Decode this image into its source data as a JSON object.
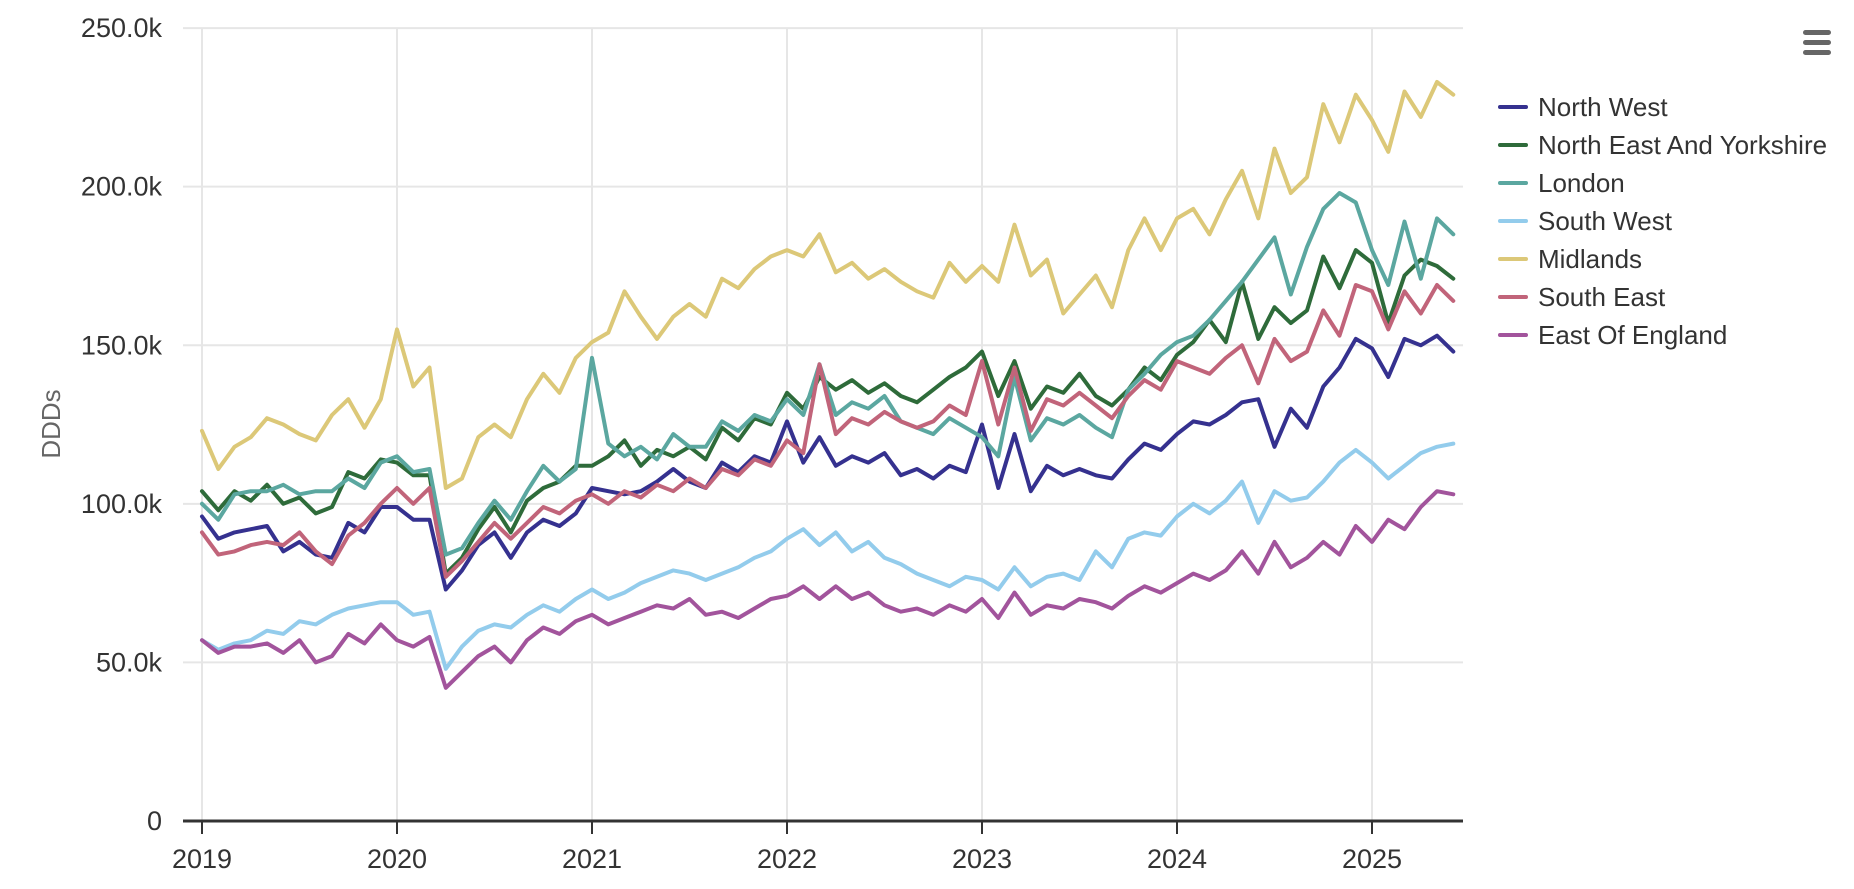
{
  "chart_data": {
    "type": "line",
    "title": "",
    "xlabel": "",
    "ylabel": "DDDs",
    "unit": "DDDs (thousands)",
    "grid": true,
    "legend_position": "right",
    "ylim_thousands": [
      0,
      250
    ],
    "y_tick_labels": [
      "0",
      "50.0k",
      "100.0k",
      "150.0k",
      "200.0k",
      "250.0k"
    ],
    "y_tick_values_thousands": [
      0,
      50,
      100,
      150,
      200,
      250
    ],
    "x_tick_labels": [
      "2019",
      "2020",
      "2021",
      "2022",
      "2023",
      "2024",
      "2025"
    ],
    "x_start_month": "2019-01",
    "x_end_month": "2025-06",
    "months_per_point": 1,
    "series": [
      {
        "name": "North West",
        "color": "#35318f",
        "values_thousands": [
          96,
          89,
          91,
          92,
          93,
          85,
          88,
          84,
          83,
          94,
          91,
          99,
          99,
          95,
          95,
          73,
          79,
          87,
          91,
          83,
          91,
          95,
          93,
          97,
          105,
          104,
          103,
          104,
          107,
          111,
          107,
          105,
          113,
          110,
          115,
          113,
          126,
          113,
          121,
          112,
          115,
          113,
          116,
          109,
          111,
          108,
          112,
          110,
          125,
          105,
          122,
          104,
          112,
          109,
          111,
          109,
          108,
          114,
          119,
          117,
          122,
          126,
          125,
          128,
          132,
          133,
          118,
          130,
          124,
          137,
          143,
          152,
          149,
          140,
          152,
          150,
          153,
          148
        ]
      },
      {
        "name": "North East And Yorkshire",
        "color": "#2e6b3a",
        "values_thousands": [
          104,
          98,
          104,
          101,
          106,
          100,
          102,
          97,
          99,
          110,
          108,
          114,
          113,
          109,
          109,
          78,
          83,
          92,
          99,
          91,
          101,
          105,
          107,
          112,
          112,
          115,
          120,
          112,
          117,
          115,
          118,
          114,
          124,
          120,
          127,
          125,
          135,
          130,
          140,
          136,
          139,
          135,
          138,
          134,
          132,
          136,
          140,
          143,
          148,
          134,
          145,
          130,
          137,
          135,
          141,
          134,
          131,
          136,
          143,
          139,
          147,
          151,
          158,
          151,
          170,
          152,
          162,
          157,
          161,
          178,
          168,
          180,
          176,
          157,
          172,
          177,
          175,
          171
        ]
      },
      {
        "name": "London",
        "color": "#5ba7a0",
        "values_thousands": [
          100,
          95,
          103,
          104,
          104,
          106,
          103,
          104,
          104,
          108,
          105,
          113,
          115,
          110,
          111,
          84,
          86,
          94,
          101,
          95,
          104,
          112,
          107,
          111,
          146,
          119,
          115,
          118,
          114,
          122,
          118,
          118,
          126,
          123,
          128,
          126,
          133,
          128,
          144,
          128,
          132,
          130,
          134,
          126,
          124,
          122,
          127,
          124,
          121,
          115,
          140,
          120,
          127,
          125,
          128,
          124,
          121,
          136,
          141,
          147,
          151,
          153,
          158,
          164,
          170,
          177,
          184,
          166,
          181,
          193,
          198,
          195,
          180,
          169,
          189,
          171,
          190,
          185
        ]
      },
      {
        "name": "South West",
        "color": "#93ccec",
        "values_thousands": [
          57,
          54,
          56,
          57,
          60,
          59,
          63,
          62,
          65,
          67,
          68,
          69,
          69,
          65,
          66,
          48,
          55,
          60,
          62,
          61,
          65,
          68,
          66,
          70,
          73,
          70,
          72,
          75,
          77,
          79,
          78,
          76,
          78,
          80,
          83,
          85,
          89,
          92,
          87,
          91,
          85,
          88,
          83,
          81,
          78,
          76,
          74,
          77,
          76,
          73,
          80,
          74,
          77,
          78,
          76,
          85,
          80,
          89,
          91,
          90,
          96,
          100,
          97,
          101,
          107,
          94,
          104,
          101,
          102,
          107,
          113,
          117,
          113,
          108,
          112,
          116,
          118,
          119
        ]
      },
      {
        "name": "Midlands",
        "color": "#dcc878",
        "values_thousands": [
          123,
          111,
          118,
          121,
          127,
          125,
          122,
          120,
          128,
          133,
          124,
          133,
          155,
          137,
          143,
          105,
          108,
          121,
          125,
          121,
          133,
          141,
          135,
          146,
          151,
          154,
          167,
          159,
          152,
          159,
          163,
          159,
          171,
          168,
          174,
          178,
          180,
          178,
          185,
          173,
          176,
          171,
          174,
          170,
          167,
          165,
          176,
          170,
          175,
          170,
          188,
          172,
          177,
          160,
          166,
          172,
          162,
          180,
          190,
          180,
          190,
          193,
          185,
          196,
          205,
          190,
          212,
          198,
          203,
          226,
          214,
          229,
          221,
          211,
          230,
          222,
          233,
          229
        ]
      },
      {
        "name": "South East",
        "color": "#c1647a",
        "values_thousands": [
          91,
          84,
          85,
          87,
          88,
          87,
          91,
          85,
          81,
          90,
          94,
          100,
          105,
          100,
          105,
          77,
          82,
          88,
          94,
          89,
          94,
          99,
          97,
          101,
          103,
          100,
          104,
          102,
          106,
          104,
          108,
          105,
          111,
          109,
          114,
          112,
          120,
          116,
          144,
          122,
          127,
          125,
          129,
          126,
          124,
          126,
          131,
          128,
          145,
          125,
          143,
          123,
          133,
          131,
          135,
          131,
          127,
          134,
          139,
          136,
          145,
          143,
          141,
          146,
          150,
          138,
          152,
          145,
          148,
          161,
          153,
          169,
          167,
          155,
          167,
          160,
          169,
          164
        ]
      },
      {
        "name": "East Of England",
        "color": "#a2549c",
        "values_thousands": [
          57,
          53,
          55,
          55,
          56,
          53,
          57,
          50,
          52,
          59,
          56,
          62,
          57,
          55,
          58,
          42,
          47,
          52,
          55,
          50,
          57,
          61,
          59,
          63,
          65,
          62,
          64,
          66,
          68,
          67,
          70,
          65,
          66,
          64,
          67,
          70,
          71,
          74,
          70,
          74,
          70,
          72,
          68,
          66,
          67,
          65,
          68,
          66,
          70,
          64,
          72,
          65,
          68,
          67,
          70,
          69,
          67,
          71,
          74,
          72,
          75,
          78,
          76,
          79,
          85,
          78,
          88,
          80,
          83,
          88,
          84,
          93,
          88,
          95,
          92,
          99,
          104,
          103
        ]
      }
    ]
  },
  "ui": {
    "y_axis_title": "DDDs",
    "context_menu_icon": "hamburger-menu-icon",
    "colors": {
      "background": "#ffffff",
      "gridline": "#e6e6e6",
      "axis_line": "#333333",
      "tick_label": "#333333",
      "axis_title": "#666666",
      "legend_text": "#333333",
      "menu_icon": "#666666"
    }
  }
}
